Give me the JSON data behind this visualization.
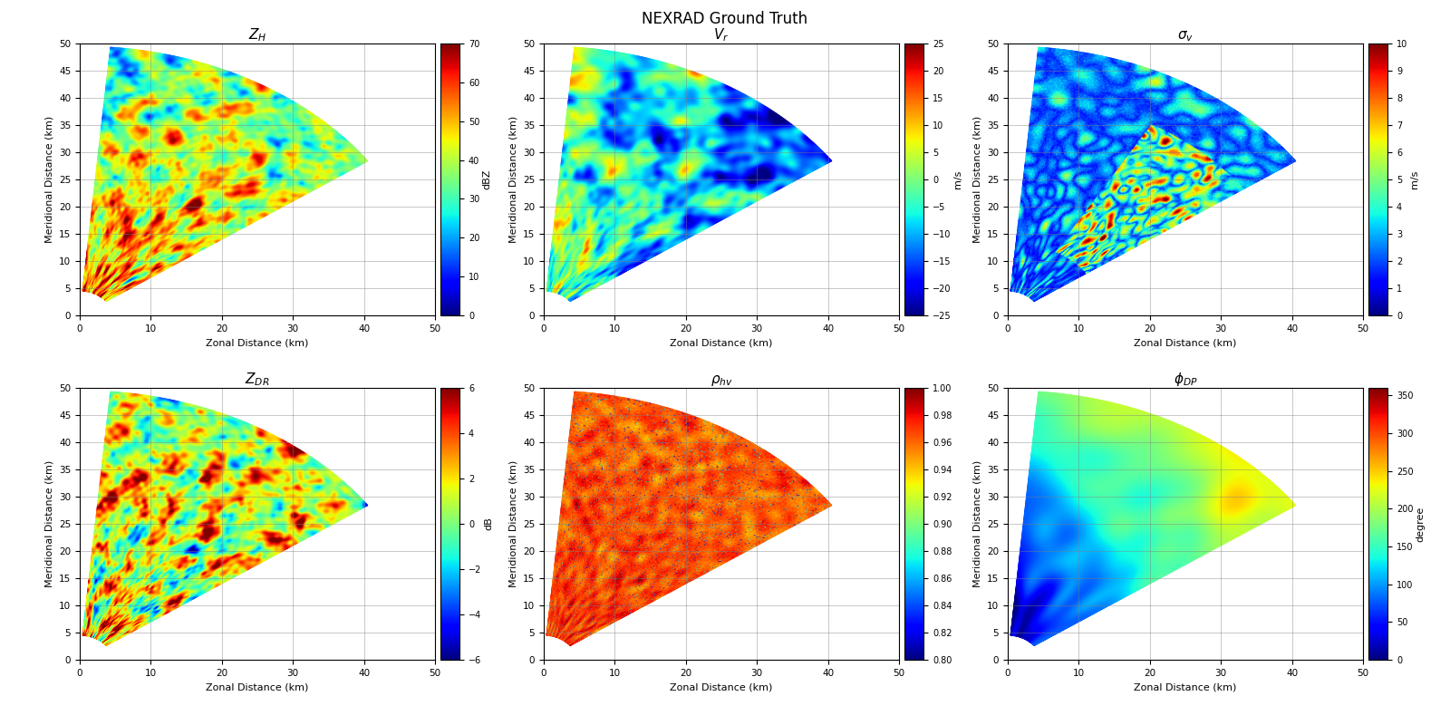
{
  "title": "NEXRAD Ground Truth",
  "title_fontsize": 12,
  "subplots": [
    {
      "name": "Z_H",
      "title": "$Z_H$",
      "cmap": "jet",
      "vmin": 0,
      "vmax": 70,
      "cbar_label": "dBZ",
      "cbar_ticks": [
        0,
        10,
        20,
        30,
        40,
        50,
        60,
        70
      ],
      "noise_type": "weather_zh"
    },
    {
      "name": "V_r",
      "title": "$V_r$",
      "cmap": "jet",
      "vmin": -25,
      "vmax": 25,
      "cbar_label": "m/s",
      "cbar_ticks": [
        -25,
        -20,
        -15,
        -10,
        -5,
        0,
        5,
        10,
        15,
        20,
        25
      ],
      "noise_type": "weather_vr"
    },
    {
      "name": "sigma_v",
      "title": "$\\sigma_v$",
      "cmap": "jet",
      "vmin": 0,
      "vmax": 10,
      "cbar_label": "m/s",
      "cbar_ticks": [
        0,
        1,
        2,
        3,
        4,
        5,
        6,
        7,
        8,
        9,
        10
      ],
      "noise_type": "weather_sv"
    },
    {
      "name": "Z_DR",
      "title": "$Z_{DR}$",
      "cmap": "jet",
      "vmin": -6,
      "vmax": 6,
      "cbar_label": "dB",
      "cbar_ticks": [
        -6,
        -4,
        -2,
        0,
        2,
        4,
        6
      ],
      "noise_type": "weather_zdr"
    },
    {
      "name": "rho_hv",
      "title": "$\\rho_{hv}$",
      "cmap": "jet",
      "vmin": 0.8,
      "vmax": 1.0,
      "cbar_label": "",
      "cbar_ticks": [
        0.8,
        0.82,
        0.84,
        0.86,
        0.88,
        0.9,
        0.92,
        0.94,
        0.96,
        0.98,
        1.0
      ],
      "noise_type": "weather_rhv"
    },
    {
      "name": "phi_DP",
      "title": "$\\phi_{DP}$",
      "cmap": "jet",
      "vmin": 0,
      "vmax": 360,
      "cbar_label": "degree",
      "cbar_ticks": [
        0,
        50,
        100,
        150,
        200,
        250,
        300,
        350
      ],
      "noise_type": "weather_phidp"
    }
  ],
  "xlim": [
    0,
    50
  ],
  "ylim": [
    0,
    50
  ],
  "xticks": [
    0,
    10,
    20,
    30,
    40,
    50
  ],
  "yticks": [
    0,
    5,
    10,
    15,
    20,
    25,
    30,
    35,
    40,
    45,
    50
  ],
  "xlabel": "Zonal Distance (km)",
  "ylabel": "Meridional Distance (km)",
  "grid": true,
  "r_min": 4.5,
  "r_max": 49.5,
  "az_min_deg": 5.0,
  "az_max_deg": 55.0,
  "Nr": 300,
  "Naz": 250,
  "seed": 42
}
